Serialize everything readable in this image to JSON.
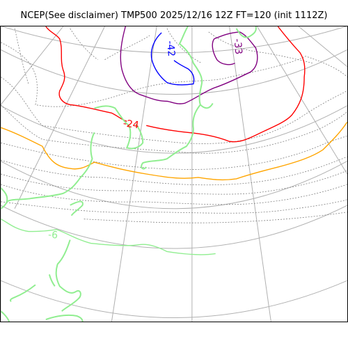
{
  "title": "NCEP(See disclaimer) TMP500 2025/12/16 12Z FT=120 (init 1112Z)",
  "colors": {
    "graticule": "#b0b0b0",
    "isotherm_minor": "#808080",
    "coast": "#90ee90",
    "minus6": "#90ee90",
    "minus18": "#ffa500",
    "minus24": "#ff0000",
    "minus33": "#800080",
    "minus42": "#0000ff"
  },
  "contour_labels": [
    {
      "name": "label-minus-42",
      "text": "-42",
      "color": "#0000ff"
    },
    {
      "name": "label-minus-33",
      "text": "-33",
      "color": "#800080"
    },
    {
      "name": "label-minus-24",
      "text": "-24",
      "color": "#ff0000"
    },
    {
      "name": "label-minus-6",
      "text": "-6",
      "color": "#90ee90"
    }
  ]
}
